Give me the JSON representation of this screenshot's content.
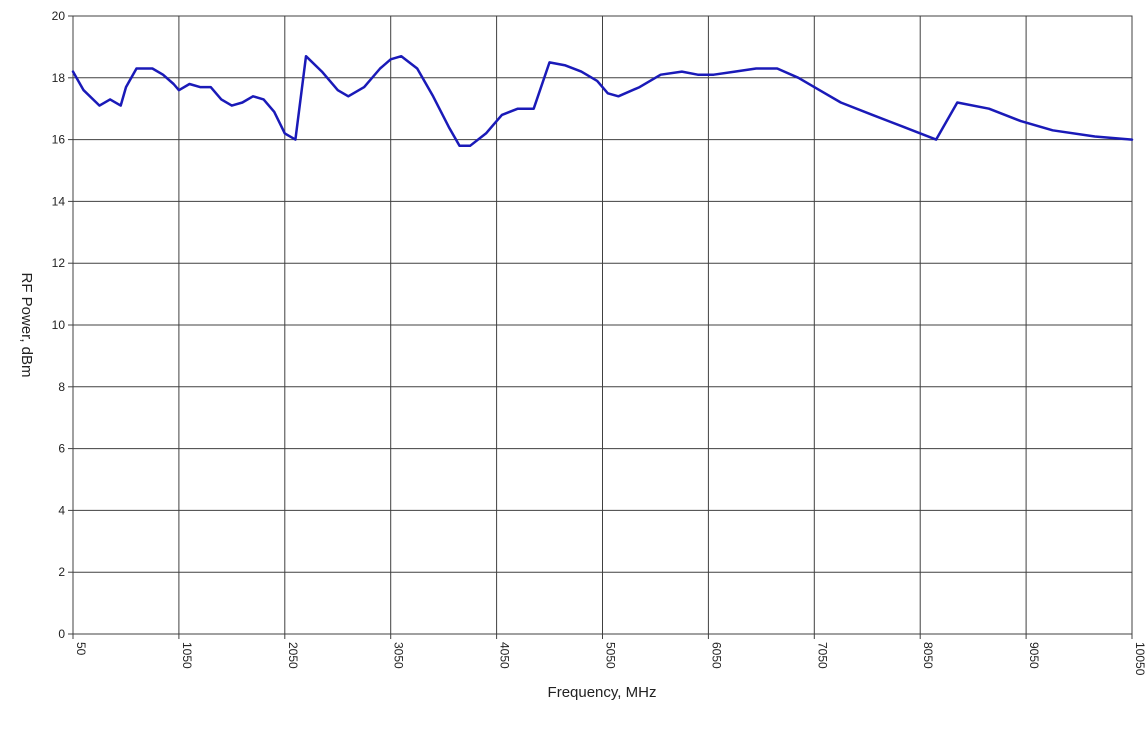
{
  "chart_data": {
    "type": "line",
    "title": "",
    "xlabel": "Frequency, MHz",
    "ylabel": "RF Power, dBm",
    "xlim": [
      50,
      10050
    ],
    "ylim": [
      0,
      20
    ],
    "x_ticks": [
      "50",
      "1050",
      "2050",
      "3050",
      "4050",
      "5050",
      "6050",
      "7050",
      "8050",
      "9050",
      "10050"
    ],
    "y_ticks": [
      "0",
      "2",
      "4",
      "6",
      "8",
      "10",
      "12",
      "14",
      "16",
      "18",
      "20"
    ],
    "grid": true,
    "legend": "none",
    "series": [
      {
        "color": "#1a1ab8",
        "x": [
          50,
          150,
          300,
          400,
          500,
          550,
          650,
          800,
          900,
          1000,
          1050,
          1150,
          1250,
          1350,
          1450,
          1550,
          1650,
          1750,
          1850,
          1950,
          2050,
          2150,
          2250,
          2400,
          2550,
          2650,
          2800,
          2950,
          3050,
          3150,
          3300,
          3450,
          3600,
          3700,
          3800,
          3950,
          4100,
          4250,
          4400,
          4550,
          4700,
          4850,
          5000,
          5100,
          5200,
          5400,
          5600,
          5800,
          5950,
          6100,
          6300,
          6500,
          6700,
          6900,
          7100,
          7300,
          7600,
          7900,
          8200,
          8400,
          8700,
          9000,
          9300,
          9700,
          10050
        ],
        "y": [
          18.2,
          17.6,
          17.1,
          17.3,
          17.1,
          17.7,
          18.3,
          18.3,
          18.1,
          17.8,
          17.6,
          17.8,
          17.7,
          17.7,
          17.3,
          17.1,
          17.2,
          17.4,
          17.3,
          16.9,
          16.2,
          16.0,
          18.7,
          18.2,
          17.6,
          17.4,
          17.7,
          18.3,
          18.6,
          18.7,
          18.3,
          17.4,
          16.4,
          15.8,
          15.8,
          16.2,
          16.8,
          17.0,
          17.0,
          18.5,
          18.4,
          18.2,
          17.9,
          17.5,
          17.4,
          17.7,
          18.1,
          18.2,
          18.1,
          18.1,
          18.2,
          18.3,
          18.3,
          18.0,
          17.6,
          17.2,
          16.8,
          16.4,
          16.0,
          17.2,
          17.0,
          16.6,
          16.3,
          16.1,
          16.0
        ]
      }
    ]
  }
}
